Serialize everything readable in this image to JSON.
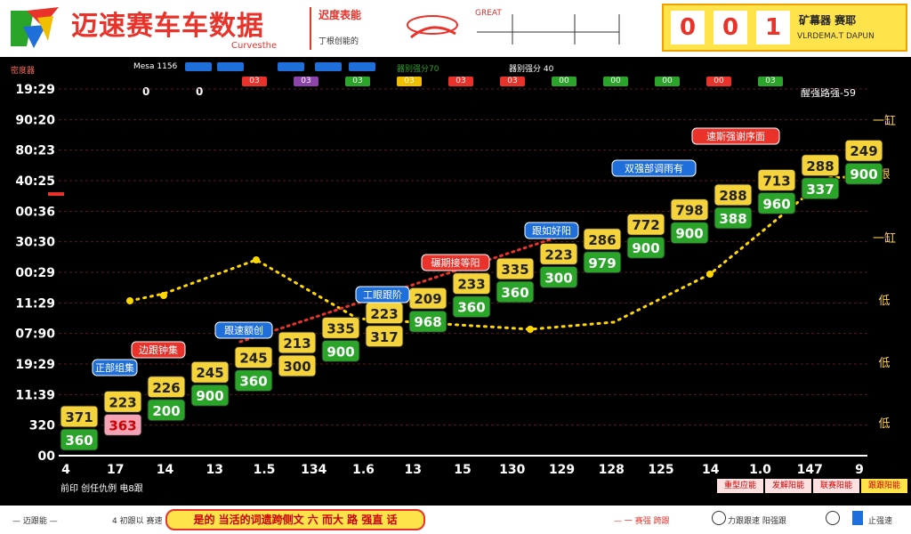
{
  "header": {
    "title": "迈速赛车车数据",
    "subtitle": "Curvesthe",
    "sponsor_a_line1": "迟度表能",
    "sponsor_a_line2": "丁根创能的",
    "sponsor_b_text": "GREAT"
  },
  "score": {
    "digits": [
      "0",
      "0",
      "1"
    ],
    "label": "矿幕器 赛耶",
    "sublabel": "VLRDEMA.T DAPUN"
  },
  "topbar": {
    "corner_label": "密度器",
    "label_a": "Mesa 1156",
    "label_b": "器别强分70",
    "label_c": "器别强分 40",
    "values_left": [
      "0",
      "0"
    ],
    "chips": [
      {
        "label": "",
        "color": "#1e6fd9"
      },
      {
        "label": "",
        "color": "#1e6fd9"
      },
      {
        "label": "",
        "color": "#1e6fd9"
      },
      {
        "label": "",
        "color": "#1e6fd9"
      },
      {
        "label": "",
        "color": "#1e6fd9"
      }
    ],
    "codes": [
      {
        "text": "03",
        "color": "#e8322a"
      },
      {
        "text": "03",
        "color": "#8e44ad"
      },
      {
        "text": "03",
        "color": "#2aa52a"
      },
      {
        "text": "03",
        "color": "#f0c000"
      },
      {
        "text": "03",
        "color": "#e8322a"
      },
      {
        "text": "03",
        "color": "#e8322a"
      },
      {
        "text": "00",
        "color": "#2aa52a"
      },
      {
        "text": "00",
        "color": "#2aa52a"
      },
      {
        "text": "00",
        "color": "#2aa52a"
      },
      {
        "text": "00",
        "color": "#e8322a"
      },
      {
        "text": "03",
        "color": "#2aa52a"
      }
    ],
    "right_label": "醒强路强-59"
  },
  "colors": {
    "yellow": "#f5d33a",
    "green": "#2aa52a",
    "red": "#e8322a",
    "blue": "#1e6fd9",
    "dot_yellow": "#ffd700",
    "dot_red": "#e8322a"
  },
  "chart_data": {
    "type": "line",
    "title": "",
    "xlabel": "",
    "ylabel": "",
    "y_tick_labels": [
      "19:29",
      "90:20",
      "80:23",
      "40:25",
      "00:36",
      "30:30",
      "00:29",
      "11:29",
      "07:90",
      "19:29",
      "11:39",
      "320",
      "00"
    ],
    "x_tick_labels": [
      "4",
      "17",
      "14",
      "13",
      "1.5",
      "134",
      "1.6",
      "13",
      "15",
      "130",
      "129",
      "128",
      "125",
      "14",
      "1.0",
      "147",
      "9"
    ],
    "right_labels": [
      "一缸",
      "跟",
      "一缸",
      "低",
      "低",
      "低"
    ],
    "boxes": [
      {
        "top": "371",
        "bottom": "360",
        "top_color": "yellow",
        "bottom_color": "green"
      },
      {
        "top": "223",
        "bottom": "363",
        "top_color": "yellow",
        "bottom_color": "pink"
      },
      {
        "top": "226",
        "bottom": "200",
        "top_color": "yellow",
        "bottom_color": "green"
      },
      {
        "top": "245",
        "bottom": "900",
        "top_color": "yellow",
        "bottom_color": "green"
      },
      {
        "top": "245",
        "bottom": "360",
        "top_color": "yellow",
        "bottom_color": "green"
      },
      {
        "top": "213",
        "bottom": "300",
        "top_color": "yellow",
        "bottom_color": "yellow"
      },
      {
        "top": "335",
        "bottom": "900",
        "top_color": "yellow",
        "bottom_color": "green"
      },
      {
        "top": "223",
        "bottom": "317",
        "top_color": "yellow",
        "bottom_color": "yellow"
      },
      {
        "top": "209",
        "bottom": "968",
        "top_color": "yellow",
        "bottom_color": "green"
      },
      {
        "top": "233",
        "bottom": "360",
        "top_color": "yellow",
        "bottom_color": "green"
      },
      {
        "top": "335",
        "bottom": "360",
        "top_color": "yellow",
        "bottom_color": "green"
      },
      {
        "top": "223",
        "bottom": "300",
        "top_color": "yellow",
        "bottom_color": "green"
      },
      {
        "top": "286",
        "bottom": "979",
        "top_color": "yellow",
        "bottom_color": "green"
      },
      {
        "top": "772",
        "bottom": "900",
        "top_color": "yellow",
        "bottom_color": "green"
      },
      {
        "top": "798",
        "bottom": "900",
        "top_color": "yellow",
        "bottom_color": "green"
      },
      {
        "top": "288",
        "bottom": "388",
        "top_color": "yellow",
        "bottom_color": "green"
      },
      {
        "top": "713",
        "bottom": "960",
        "top_color": "yellow",
        "bottom_color": "green"
      },
      {
        "top": "288",
        "bottom": "337",
        "top_color": "yellow",
        "bottom_color": "green"
      },
      {
        "top": "249",
        "bottom": "900",
        "top_color": "yellow",
        "bottom_color": "green"
      }
    ],
    "callouts": [
      {
        "text": "正部组集",
        "color": "blue"
      },
      {
        "text": "边跟钟集",
        "color": "red"
      },
      {
        "text": "跟速额创",
        "color": "blue"
      },
      {
        "text": "工眼跟阶",
        "color": "blue"
      },
      {
        "text": "碾期接等阳",
        "color": "red"
      },
      {
        "text": "跟如好阳",
        "color": "blue"
      },
      {
        "text": "双强部调雨有",
        "color": "blue"
      },
      {
        "text": "速斯强谢序面",
        "color": "red"
      }
    ]
  },
  "legend": {
    "left_text": "前印 创任仇例 电8跟",
    "items": [
      "重型应能",
      "发解阳能",
      "联赛阳能",
      "跟跟阳能"
    ],
    "item_colors": [
      "#fde0e0",
      "#fde0e0",
      "#fde0e0",
      "#ffe34a"
    ]
  },
  "footer": {
    "main_text": "是的 当活的词遗跨侧文 六 而大 路 强直 话",
    "left_text": "— 迈跟能 —",
    "mid_text": "4 初跟以 赛速",
    "right_text_a": "— 一 赛强 跨跟",
    "right_text_b": "力跟跟速 阳强跟",
    "right_text_c": "止强速"
  }
}
